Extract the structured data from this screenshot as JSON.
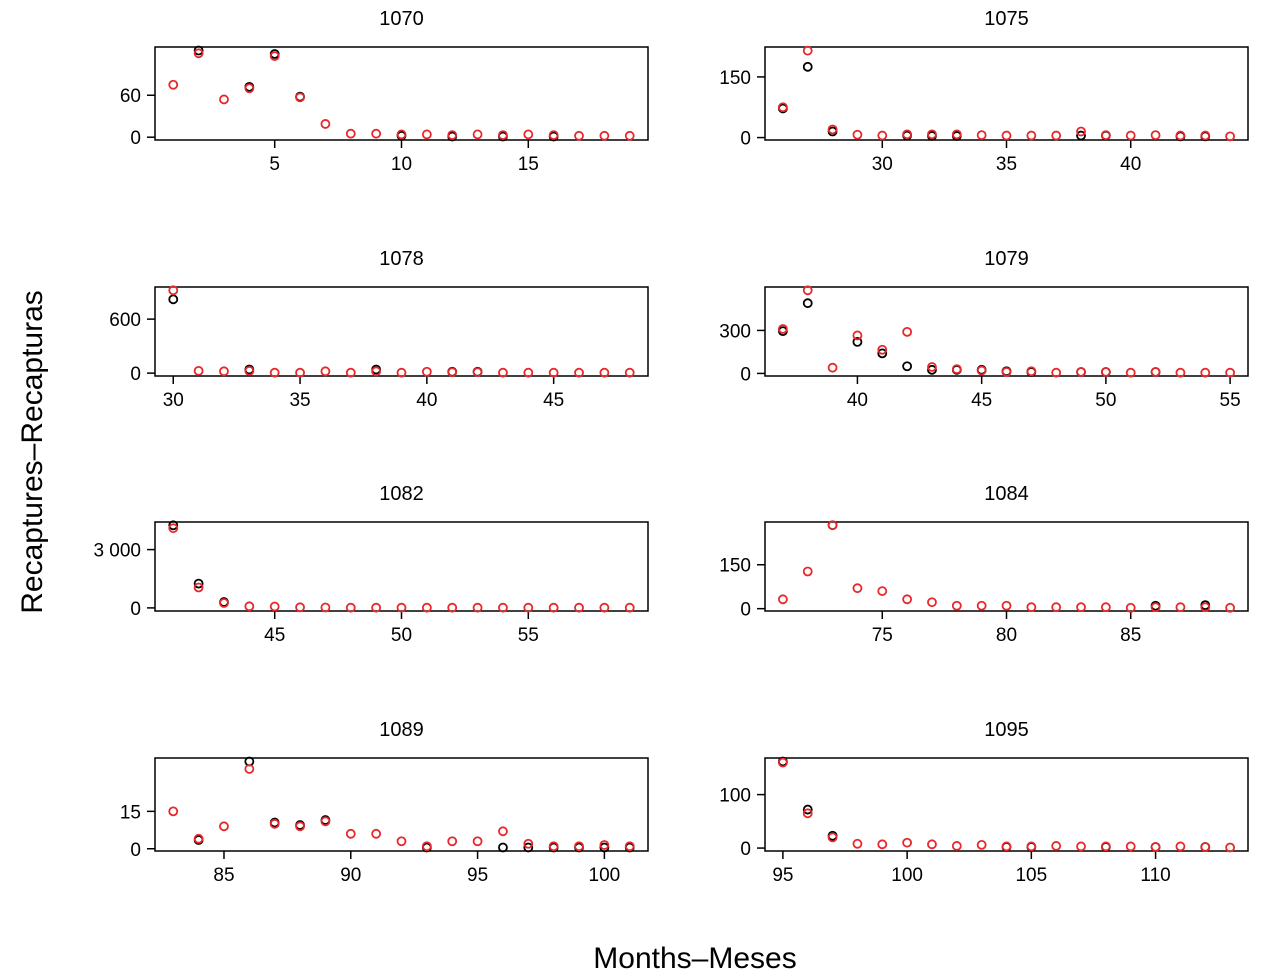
{
  "ylabel": "Recaptures–Recapturas",
  "xlabel": "Months–Meses",
  "chart_data": [
    {
      "type": "scatter",
      "title": "1070",
      "x": [
        1,
        2,
        3,
        4,
        5,
        6,
        7,
        8,
        9,
        10,
        11,
        12,
        13,
        14,
        15,
        16,
        17,
        18,
        19
      ],
      "series": [
        {
          "color": "#000000",
          "values": [
            null,
            124,
            null,
            72,
            119,
            58,
            null,
            null,
            null,
            2,
            null,
            1,
            null,
            1,
            null,
            1,
            null,
            null,
            null
          ]
        },
        {
          "color": "#e8282a",
          "values": [
            75,
            120,
            54,
            70,
            116,
            57,
            19,
            5,
            5,
            4,
            4,
            3,
            4,
            3,
            4,
            3,
            2,
            2,
            2
          ]
        }
      ],
      "xlim": [
        0.28,
        19.72
      ],
      "xticks": [
        5,
        10,
        15
      ],
      "ylim": [
        -4,
        129
      ],
      "yticks": [
        0,
        60
      ]
    },
    {
      "type": "scatter",
      "title": "1075",
      "x": [
        26,
        27,
        28,
        29,
        30,
        31,
        32,
        33,
        34,
        35,
        36,
        37,
        38,
        39,
        40,
        41,
        42,
        43,
        44
      ],
      "series": [
        {
          "color": "#000000",
          "values": [
            72,
            175,
            15,
            null,
            null,
            5,
            4,
            4,
            null,
            null,
            null,
            null,
            5,
            5,
            null,
            null,
            3,
            3,
            null
          ]
        },
        {
          "color": "#e8282a",
          "values": [
            75,
            215,
            20,
            7,
            5,
            8,
            8,
            8,
            6,
            5,
            5,
            5,
            15,
            6,
            5,
            6,
            5,
            5,
            3
          ]
        }
      ],
      "xlim": [
        25.28,
        44.72
      ],
      "xticks": [
        30,
        35,
        40
      ],
      "ylim": [
        -6,
        224
      ],
      "yticks": [
        0,
        150
      ]
    },
    {
      "type": "scatter",
      "title": "1078",
      "x": [
        30,
        31,
        32,
        33,
        34,
        35,
        36,
        37,
        38,
        39,
        40,
        41,
        42,
        43,
        44,
        45,
        46,
        47,
        48
      ],
      "series": [
        {
          "color": "#000000",
          "values": [
            820,
            null,
            null,
            40,
            null,
            null,
            null,
            null,
            40,
            null,
            null,
            15,
            15,
            null,
            null,
            null,
            null,
            null,
            null
          ]
        },
        {
          "color": "#e8282a",
          "values": [
            920,
            25,
            20,
            25,
            5,
            5,
            20,
            5,
            20,
            5,
            15,
            10,
            10,
            5,
            5,
            5,
            5,
            5,
            5
          ]
        }
      ],
      "xlim": [
        29.28,
        48.72
      ],
      "xticks": [
        30,
        35,
        40,
        45
      ],
      "ylim": [
        -32,
        957
      ],
      "yticks": [
        0,
        600
      ]
    },
    {
      "type": "scatter",
      "title": "1079",
      "x": [
        37,
        38,
        39,
        40,
        41,
        42,
        43,
        44,
        45,
        46,
        47,
        48,
        49,
        50,
        51,
        52,
        53,
        54,
        55
      ],
      "series": [
        {
          "color": "#000000",
          "values": [
            295,
            490,
            null,
            220,
            140,
            50,
            25,
            25,
            25,
            15,
            10,
            null,
            10,
            10,
            null,
            10,
            null,
            null,
            null
          ]
        },
        {
          "color": "#e8282a",
          "values": [
            310,
            580,
            40,
            265,
            165,
            290,
            45,
            30,
            20,
            10,
            15,
            5,
            10,
            10,
            5,
            10,
            5,
            5,
            5
          ]
        }
      ],
      "xlim": [
        36.28,
        55.72
      ],
      "xticks": [
        40,
        45,
        50,
        55
      ],
      "ylim": [
        -18,
        603
      ],
      "yticks": [
        0,
        300
      ]
    },
    {
      "type": "scatter",
      "title": "1082",
      "x": [
        41,
        42,
        43,
        44,
        45,
        46,
        47,
        48,
        49,
        50,
        51,
        52,
        53,
        54,
        55,
        56,
        57,
        58,
        59
      ],
      "series": [
        {
          "color": "#000000",
          "values": [
            4250,
            1250,
            300,
            null,
            null,
            null,
            null,
            null,
            null,
            null,
            null,
            null,
            null,
            null,
            null,
            null,
            null,
            null,
            null
          ]
        },
        {
          "color": "#e8282a",
          "values": [
            4100,
            1050,
            250,
            80,
            70,
            30,
            20,
            10,
            10,
            10,
            10,
            10,
            10,
            10,
            10,
            10,
            10,
            10,
            10
          ]
        }
      ],
      "xlim": [
        40.28,
        59.72
      ],
      "xticks": [
        45,
        50,
        55
      ],
      "ylim": [
        -160,
        4420
      ],
      "yticks": [
        0,
        {
          "value": 3000,
          "label": "3 000"
        }
      ]
    },
    {
      "type": "scatter",
      "title": "1084",
      "x": [
        71,
        72,
        73,
        74,
        75,
        76,
        77,
        78,
        79,
        80,
        81,
        82,
        83,
        84,
        85,
        86,
        87,
        88,
        89
      ],
      "series": [
        {
          "color": "#000000",
          "values": [
            null,
            null,
            285,
            null,
            null,
            null,
            null,
            null,
            null,
            null,
            null,
            null,
            null,
            null,
            null,
            10,
            null,
            12,
            null
          ]
        },
        {
          "color": "#e8282a",
          "values": [
            32,
            127,
            285,
            70,
            60,
            32,
            22,
            10,
            10,
            10,
            5,
            5,
            5,
            5,
            3,
            5,
            5,
            5,
            3
          ]
        }
      ],
      "xlim": [
        70.28,
        89.72
      ],
      "xticks": [
        75,
        80,
        85
      ],
      "ylim": [
        -8,
        296
      ],
      "yticks": [
        0,
        150
      ]
    },
    {
      "type": "scatter",
      "title": "1089",
      "x": [
        83,
        84,
        85,
        86,
        87,
        88,
        89,
        90,
        91,
        92,
        93,
        94,
        95,
        96,
        97,
        98,
        99,
        100,
        101
      ],
      "series": [
        {
          "color": "#000000",
          "values": [
            null,
            3.5,
            null,
            35,
            10.5,
            9.5,
            11.5,
            null,
            null,
            null,
            0.5,
            null,
            null,
            0.5,
            0.5,
            0.5,
            0.5,
            0.5,
            0.5
          ]
        },
        {
          "color": "#e8282a",
          "values": [
            15,
            4,
            9,
            32,
            10,
            9,
            11,
            6,
            6,
            3,
            1,
            3,
            3,
            7,
            2,
            1,
            1,
            1.5,
            1
          ]
        }
      ],
      "xlim": [
        82.28,
        101.72
      ],
      "xticks": [
        85,
        90,
        95,
        100
      ],
      "ylim": [
        -0.9,
        36.4
      ],
      "yticks": [
        0,
        15
      ]
    },
    {
      "type": "scatter",
      "title": "1095",
      "x": [
        95,
        96,
        97,
        98,
        99,
        100,
        101,
        102,
        103,
        104,
        105,
        106,
        107,
        108,
        109,
        110,
        111,
        112,
        113
      ],
      "series": [
        {
          "color": "#000000",
          "values": [
            162,
            72,
            23,
            null,
            null,
            null,
            null,
            null,
            null,
            2,
            2,
            null,
            null,
            2,
            null,
            2,
            null,
            2,
            null
          ]
        },
        {
          "color": "#e8282a",
          "values": [
            160,
            65,
            20,
            8,
            7,
            10,
            7,
            4,
            6,
            3,
            3,
            4,
            3,
            3,
            3,
            2,
            3,
            2,
            1
          ]
        }
      ],
      "xlim": [
        94.28,
        113.72
      ],
      "xticks": [
        95,
        100,
        105,
        110
      ],
      "ylim": [
        -5.5,
        168.5
      ],
      "yticks": [
        0,
        100
      ]
    }
  ]
}
